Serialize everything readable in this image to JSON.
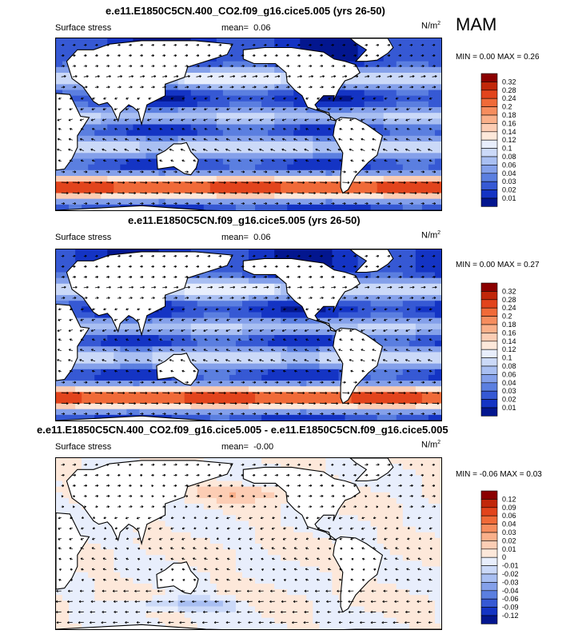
{
  "season": "MAM",
  "panels": [
    {
      "title": "e.e11.E1850C5CN.400_CO2.f09_g16.cice5.005 (yrs 26-50)",
      "left_label": "Surface stress",
      "mean_label": "mean=",
      "mean_value": "0.06",
      "units": "N/m",
      "units_sup": "2",
      "min_label": "MIN =",
      "min_value": "0.00",
      "max_label": "MAX =",
      "max_value": "0.26",
      "colorbar_levels": [
        "0.32",
        "0.28",
        "0.24",
        "0.2",
        "0.18",
        "0.16",
        "0.14",
        "0.12",
        "0.1",
        "0.08",
        "0.06",
        "0.04",
        "0.03",
        "0.02",
        "0.01"
      ],
      "colorbar_colors": [
        "#8b0000",
        "#c1270a",
        "#e2441c",
        "#f06a38",
        "#f68d5e",
        "#fab08a",
        "#fccdb4",
        "#fde8da",
        "#e8eefc",
        "#cbd9f8",
        "#a9bff2",
        "#84a0ea",
        "#5b7fe0",
        "#3659d4",
        "#1434c4",
        "#03168f"
      ]
    },
    {
      "title": "e.e11.E1850C5CN.f09_g16.cice5.005 (yrs 26-50)",
      "left_label": "Surface stress",
      "mean_label": "mean=",
      "mean_value": "0.06",
      "units": "N/m",
      "units_sup": "2",
      "min_label": "MIN =",
      "min_value": "0.00",
      "max_label": "MAX =",
      "max_value": "0.27",
      "colorbar_levels": [
        "0.32",
        "0.28",
        "0.24",
        "0.2",
        "0.18",
        "0.16",
        "0.14",
        "0.12",
        "0.1",
        "0.08",
        "0.06",
        "0.04",
        "0.03",
        "0.02",
        "0.01"
      ],
      "colorbar_colors": [
        "#8b0000",
        "#c1270a",
        "#e2441c",
        "#f06a38",
        "#f68d5e",
        "#fab08a",
        "#fccdb4",
        "#fde8da",
        "#e8eefc",
        "#cbd9f8",
        "#a9bff2",
        "#84a0ea",
        "#5b7fe0",
        "#3659d4",
        "#1434c4",
        "#03168f"
      ]
    },
    {
      "title": "e.e11.E1850C5CN.400_CO2.f09_g16.cice5.005 - e.e11.E1850C5CN.f09_g16.cice5.005",
      "left_label": "Surface stress",
      "mean_label": "mean=",
      "mean_value": "-0.00",
      "units": "N/m",
      "units_sup": "2",
      "min_label": "MIN =",
      "min_value": "-0.06",
      "max_label": "MAX =",
      "max_value": "0.03",
      "colorbar_levels": [
        "0.12",
        "0.09",
        "0.06",
        "0.04",
        "0.03",
        "0.02",
        "0.01",
        "0",
        "-0.01",
        "-0.02",
        "-0.03",
        "-0.04",
        "-0.06",
        "-0.09",
        "-0.12"
      ],
      "colorbar_colors": [
        "#8b0000",
        "#c1270a",
        "#e2441c",
        "#f06a38",
        "#f68d5e",
        "#fab08a",
        "#fccdb4",
        "#fde8da",
        "#e8eefc",
        "#cbd9f8",
        "#a9bff2",
        "#84a0ea",
        "#5b7fe0",
        "#3659d4",
        "#1434c4",
        "#03168f"
      ]
    }
  ],
  "chart_data": [
    {
      "type": "heatmap",
      "title": "e.e11.E1850C5CN.400_CO2.f09_g16.cice5.005 (yrs 26-50)",
      "variable": "Surface stress",
      "season": "MAM",
      "units": "N/m2",
      "mean": 0.06,
      "min": 0.0,
      "max": 0.26,
      "contour_levels": [
        0.01,
        0.02,
        0.03,
        0.04,
        0.06,
        0.08,
        0.1,
        0.12,
        0.14,
        0.16,
        0.18,
        0.2,
        0.24,
        0.28,
        0.32
      ],
      "lat_band_stress": [
        {
          "lat": 60,
          "value": 0.06
        },
        {
          "lat": 45,
          "value": 0.1
        },
        {
          "lat": 25,
          "value": 0.06
        },
        {
          "lat": 10,
          "value": 0.05
        },
        {
          "lat": 0,
          "value": 0.03
        },
        {
          "lat": -15,
          "value": 0.08
        },
        {
          "lat": -30,
          "value": 0.05
        },
        {
          "lat": -50,
          "value": 0.22
        },
        {
          "lat": -65,
          "value": 0.08
        }
      ]
    },
    {
      "type": "heatmap",
      "title": "e.e11.E1850C5CN.f09_g16.cice5.005 (yrs 26-50)",
      "variable": "Surface stress",
      "season": "MAM",
      "units": "N/m2",
      "mean": 0.06,
      "min": 0.0,
      "max": 0.27,
      "contour_levels": [
        0.01,
        0.02,
        0.03,
        0.04,
        0.06,
        0.08,
        0.1,
        0.12,
        0.14,
        0.16,
        0.18,
        0.2,
        0.24,
        0.28,
        0.32
      ],
      "lat_band_stress": [
        {
          "lat": 60,
          "value": 0.06
        },
        {
          "lat": 45,
          "value": 0.1
        },
        {
          "lat": 25,
          "value": 0.06
        },
        {
          "lat": 10,
          "value": 0.05
        },
        {
          "lat": 0,
          "value": 0.03
        },
        {
          "lat": -15,
          "value": 0.08
        },
        {
          "lat": -30,
          "value": 0.05
        },
        {
          "lat": -50,
          "value": 0.23
        },
        {
          "lat": -65,
          "value": 0.08
        }
      ]
    },
    {
      "type": "heatmap",
      "title": "e.e11.E1850C5CN.400_CO2.f09_g16.cice5.005 - e.e11.E1850C5CN.f09_g16.cice5.005",
      "variable": "Surface stress",
      "season": "MAM",
      "units": "N/m2",
      "mean": -0.0,
      "min": -0.06,
      "max": 0.03,
      "contour_levels": [
        -0.12,
        -0.09,
        -0.06,
        -0.04,
        -0.03,
        -0.02,
        -0.01,
        0,
        0.01,
        0.02,
        0.03,
        0.04,
        0.06,
        0.09,
        0.12
      ],
      "lat_band_stress": [
        {
          "lat": 60,
          "value": 0.0
        },
        {
          "lat": 45,
          "value": 0.01
        },
        {
          "lat": 25,
          "value": 0.0
        },
        {
          "lat": 10,
          "value": -0.005
        },
        {
          "lat": 0,
          "value": 0.005
        },
        {
          "lat": -15,
          "value": -0.005
        },
        {
          "lat": -30,
          "value": 0.005
        },
        {
          "lat": -50,
          "value": -0.02
        },
        {
          "lat": -65,
          "value": 0.005
        }
      ]
    }
  ]
}
